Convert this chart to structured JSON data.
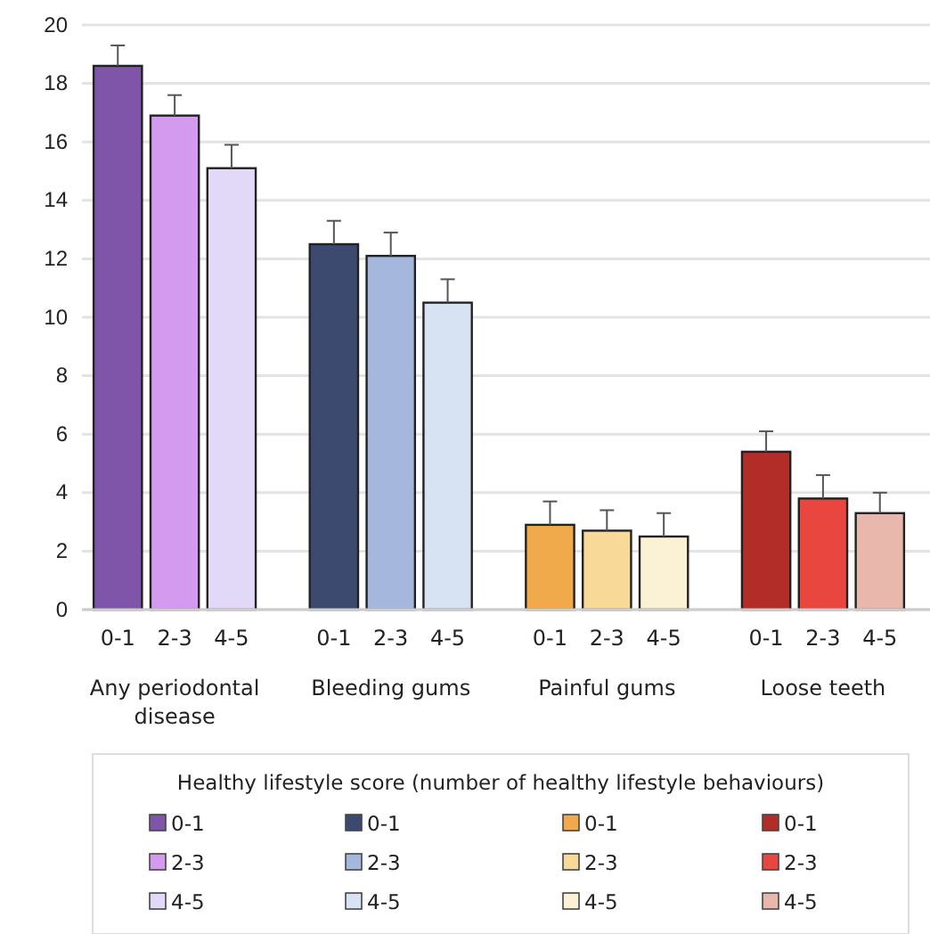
{
  "chart_data": {
    "type": "bar",
    "categories": [
      "Any periodontal disease",
      "Bleeding gums",
      "Painful gums",
      "Loose teeth"
    ],
    "series": [
      {
        "name": "0-1",
        "colors": [
          "#7f55a9",
          "#3b4a6e",
          "#f0a94b",
          "#b22d27"
        ],
        "values": [
          18.6,
          12.5,
          2.9,
          5.4
        ],
        "errors": [
          0.7,
          0.8,
          0.8,
          0.7
        ]
      },
      {
        "name": "2-3",
        "colors": [
          "#d39af0",
          "#a5b7dd",
          "#f8d998",
          "#e8463f"
        ],
        "values": [
          16.9,
          12.1,
          2.7,
          3.8
        ],
        "errors": [
          0.7,
          0.8,
          0.7,
          0.8
        ]
      },
      {
        "name": "4-5",
        "colors": [
          "#e2d8f8",
          "#d7e3f2",
          "#fbf2d6",
          "#e9b8ad"
        ],
        "values": [
          15.1,
          10.5,
          2.5,
          3.3
        ],
        "errors": [
          0.8,
          0.8,
          0.8,
          0.7
        ]
      }
    ],
    "ylim": [
      0,
      20
    ],
    "yticks": [
      0,
      2,
      4,
      6,
      8,
      10,
      12,
      14,
      16,
      18,
      20
    ],
    "grid": "y",
    "legend": "bottom",
    "legend_title": "Healthy lifestyle score (number of healthy lifestyle behaviours)"
  }
}
